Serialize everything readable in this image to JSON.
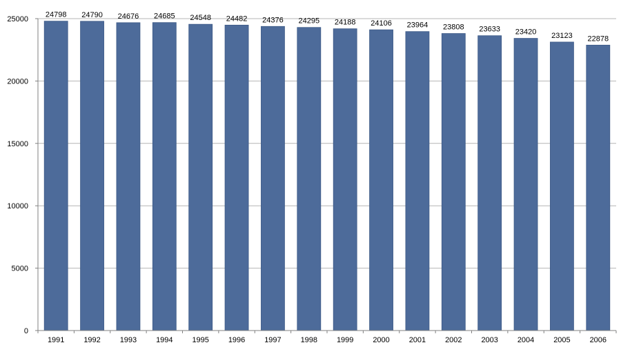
{
  "chart_data": {
    "type": "bar",
    "title": "",
    "xlabel": "",
    "ylabel": "",
    "categories": [
      "1991",
      "1992",
      "1993",
      "1994",
      "1995",
      "1996",
      "1997",
      "1998",
      "1999",
      "2000",
      "2001",
      "2002",
      "2003",
      "2004",
      "2005",
      "2006"
    ],
    "values": [
      24798,
      24790,
      24676,
      24685,
      24548,
      24482,
      24376,
      24295,
      24188,
      24106,
      23964,
      23808,
      23633,
      23420,
      23123,
      22878
    ],
    "ylim": [
      0,
      25000
    ],
    "yticks": [
      0,
      5000,
      10000,
      15000,
      20000,
      25000
    ],
    "grid": true,
    "legend": "none",
    "data_labels": true,
    "colors": {
      "bar": "#4d6b9a",
      "bar_edge": "#3d5a87",
      "grid": "#b4b4b4",
      "axis": "#808080",
      "text": "#000000"
    }
  }
}
